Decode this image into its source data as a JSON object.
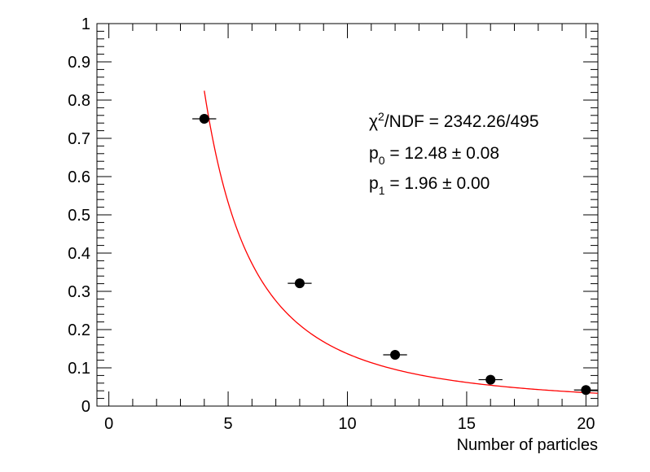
{
  "chart_data": {
    "type": "scatter",
    "title": "",
    "xlabel": "Number of particles",
    "ylabel": "",
    "xlim": [
      -0.5,
      20.5
    ],
    "ylim": [
      0,
      1
    ],
    "xticks": [
      0,
      5,
      10,
      15,
      20
    ],
    "yticks": [
      0,
      0.1,
      0.2,
      0.3,
      0.4,
      0.5,
      0.6,
      0.7,
      0.8,
      0.9,
      1
    ],
    "xtick_labels": [
      "0",
      "5",
      "10",
      "15",
      "20"
    ],
    "ytick_labels": [
      "0",
      "0.1",
      "0.2",
      "0.3",
      "0.4",
      "0.5",
      "0.6",
      "0.7",
      "0.8",
      "0.9",
      "1"
    ],
    "grid": false,
    "series": [
      {
        "type": "points",
        "color": "#000000",
        "x": [
          4,
          8,
          12,
          16,
          20
        ],
        "y": [
          0.751,
          0.321,
          0.134,
          0.069,
          0.042
        ],
        "xerr": [
          0.5,
          0.5,
          0.5,
          0.5,
          0.5
        ]
      },
      {
        "type": "fit",
        "color": "#ff0000",
        "function": "p0 / x^p1",
        "p0": 12.48,
        "p1": 1.96,
        "x_range": [
          4,
          20.5
        ]
      }
    ],
    "stats": {
      "chi2_prefix": "χ",
      "chi2_sup": "2",
      "chi2_rest": "/NDF = 2342.26/495",
      "p0_label": "p",
      "p0_sub": "0",
      "p0_value": " = 12.48 ± 0.08",
      "p1_label": "p",
      "p1_sub": "1",
      "p1_value": " = 1.96 ± 0.00"
    }
  }
}
